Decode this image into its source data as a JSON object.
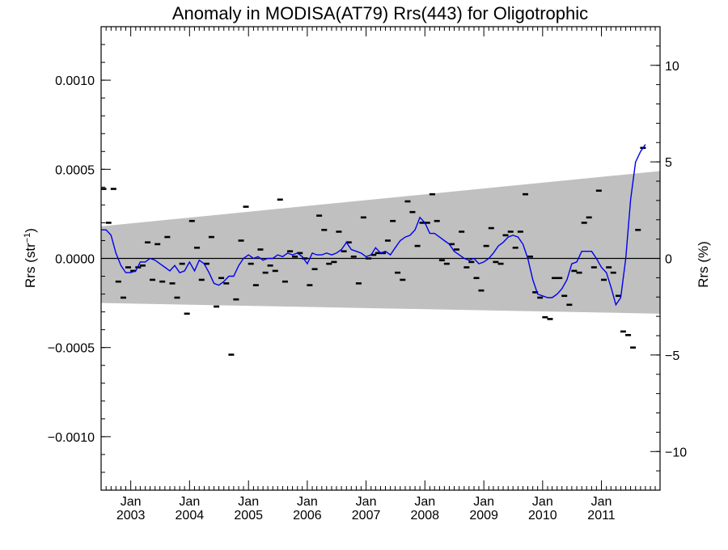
{
  "chart_data": {
    "type": "scatter",
    "title": "Anomaly in MODISA(AT79) Rrs(443) for Oligotrophic",
    "ylabel_left": {
      "main": "Rrs (str",
      "sup": "−1",
      "tail": ")"
    },
    "ylabel_right": "Rrs (%)",
    "x_range": [
      "2002-07-01",
      "2011-12-31"
    ],
    "ylim_left": [
      -0.0013,
      0.0013
    ],
    "ylim_right": [
      -12,
      12
    ],
    "grid": false,
    "x_tick_labels": [
      {
        "date": "2003-01-01",
        "month": "Jan",
        "year": "2003"
      },
      {
        "date": "2004-01-01",
        "month": "Jan",
        "year": "2004"
      },
      {
        "date": "2005-01-01",
        "month": "Jan",
        "year": "2005"
      },
      {
        "date": "2006-01-01",
        "month": "Jan",
        "year": "2006"
      },
      {
        "date": "2007-01-01",
        "month": "Jan",
        "year": "2007"
      },
      {
        "date": "2008-01-01",
        "month": "Jan",
        "year": "2008"
      },
      {
        "date": "2009-01-01",
        "month": "Jan",
        "year": "2009"
      },
      {
        "date": "2010-01-01",
        "month": "Jan",
        "year": "2010"
      },
      {
        "date": "2011-01-01",
        "month": "Jan",
        "year": "2011"
      }
    ],
    "y_ticks_left": [
      {
        "value": 0.001,
        "label": "0.0010"
      },
      {
        "value": 0.0005,
        "label": "0.0005"
      },
      {
        "value": 0.0,
        "label": "0.0000"
      },
      {
        "value": -0.0005,
        "label": "−0.0005"
      },
      {
        "value": -0.001,
        "label": "−0.0010"
      }
    ],
    "y_ticks_right": [
      {
        "value": 10,
        "label": "10"
      },
      {
        "value": 5,
        "label": "5"
      },
      {
        "value": 0,
        "label": "0"
      },
      {
        "value": -5,
        "label": "−5"
      },
      {
        "value": -10,
        "label": "−10"
      }
    ],
    "band": {
      "upper": [
        [
          "2002-07-01",
          0.00018
        ],
        [
          "2011-12-31",
          0.00049
        ]
      ],
      "lower": [
        [
          "2002-07-01",
          -0.00025
        ],
        [
          "2011-12-31",
          -0.00031
        ]
      ],
      "color": "#c0c0c0"
    },
    "zero_line": 0,
    "series": [
      {
        "kind": "points",
        "color": "#000000",
        "values": [
          [
            "2002-07-16",
            0.00039
          ],
          [
            "2002-08-16",
            0.0002
          ],
          [
            "2002-09-16",
            0.00039
          ],
          [
            "2002-10-16",
            -0.00013
          ],
          [
            "2002-11-16",
            -0.00022
          ],
          [
            "2002-12-16",
            -5e-05
          ],
          [
            "2003-01-16",
            -7e-05
          ],
          [
            "2003-02-16",
            -5e-05
          ],
          [
            "2003-03-16",
            -4e-05
          ],
          [
            "2003-04-16",
            9e-05
          ],
          [
            "2003-05-16",
            -0.00012
          ],
          [
            "2003-06-16",
            8e-05
          ],
          [
            "2003-07-16",
            -0.00013
          ],
          [
            "2003-08-16",
            0.00012
          ],
          [
            "2003-09-16",
            -0.00014
          ],
          [
            "2003-10-16",
            -0.00022
          ],
          [
            "2003-11-16",
            -3e-05
          ],
          [
            "2003-12-16",
            -0.00031
          ],
          [
            "2004-01-16",
            0.00021
          ],
          [
            "2004-02-16",
            6e-05
          ],
          [
            "2004-03-16",
            -0.00012
          ],
          [
            "2004-04-16",
            -3e-05
          ],
          [
            "2004-05-16",
            0.00012
          ],
          [
            "2004-06-16",
            -0.00027
          ],
          [
            "2004-07-16",
            -0.00011
          ],
          [
            "2004-08-16",
            -0.00014
          ],
          [
            "2004-09-16",
            -0.00054
          ],
          [
            "2004-10-16",
            -0.00023
          ],
          [
            "2004-11-16",
            0.0001
          ],
          [
            "2004-12-16",
            0.00029
          ],
          [
            "2005-01-16",
            -3e-05
          ],
          [
            "2005-02-16",
            -0.00015
          ],
          [
            "2005-03-16",
            5e-05
          ],
          [
            "2005-04-16",
            -8e-05
          ],
          [
            "2005-05-16",
            -4e-05
          ],
          [
            "2005-06-16",
            -7e-05
          ],
          [
            "2005-07-16",
            0.00033
          ],
          [
            "2005-08-16",
            -0.00013
          ],
          [
            "2005-09-16",
            4e-05
          ],
          [
            "2005-10-16",
            1e-05
          ],
          [
            "2005-11-16",
            3e-05
          ],
          [
            "2005-12-16",
            0.0
          ],
          [
            "2006-01-16",
            -0.00015
          ],
          [
            "2006-02-16",
            -6e-05
          ],
          [
            "2006-03-16",
            0.00024
          ],
          [
            "2006-04-16",
            0.00016
          ],
          [
            "2006-05-16",
            -3e-05
          ],
          [
            "2006-06-16",
            -2e-05
          ],
          [
            "2006-07-16",
            0.00015
          ],
          [
            "2006-08-16",
            4e-05
          ],
          [
            "2006-09-16",
            9e-05
          ],
          [
            "2006-10-16",
            1e-05
          ],
          [
            "2006-11-16",
            -0.00014
          ],
          [
            "2006-12-16",
            0.00023
          ],
          [
            "2007-01-16",
            0.0
          ],
          [
            "2007-02-16",
            2e-05
          ],
          [
            "2007-03-16",
            3e-05
          ],
          [
            "2007-04-16",
            3e-05
          ],
          [
            "2007-05-16",
            0.0001
          ],
          [
            "2007-06-16",
            0.00021
          ],
          [
            "2007-07-16",
            -8e-05
          ],
          [
            "2007-08-16",
            -0.00012
          ],
          [
            "2007-09-16",
            0.00032
          ],
          [
            "2007-10-16",
            0.00026
          ],
          [
            "2007-11-16",
            7e-05
          ],
          [
            "2007-12-16",
            0.0002
          ],
          [
            "2008-01-16",
            0.0002
          ],
          [
            "2008-02-16",
            0.00036
          ],
          [
            "2008-03-16",
            0.00021
          ],
          [
            "2008-04-16",
            -1e-05
          ],
          [
            "2008-05-16",
            -3e-05
          ],
          [
            "2008-06-16",
            8e-05
          ],
          [
            "2008-07-16",
            5e-05
          ],
          [
            "2008-08-16",
            0.00015
          ],
          [
            "2008-09-16",
            -5e-05
          ],
          [
            "2008-10-16",
            -2e-05
          ],
          [
            "2008-11-16",
            -0.00011
          ],
          [
            "2008-12-16",
            -0.00018
          ],
          [
            "2009-01-16",
            7e-05
          ],
          [
            "2009-02-16",
            0.00017
          ],
          [
            "2009-03-16",
            -2e-05
          ],
          [
            "2009-04-16",
            -3e-05
          ],
          [
            "2009-05-16",
            0.00013
          ],
          [
            "2009-06-16",
            0.00015
          ],
          [
            "2009-07-16",
            6e-05
          ],
          [
            "2009-08-16",
            0.00015
          ],
          [
            "2009-09-16",
            0.00036
          ],
          [
            "2009-10-16",
            1e-05
          ],
          [
            "2009-11-16",
            -0.00019
          ],
          [
            "2009-12-16",
            -0.00022
          ],
          [
            "2010-01-16",
            -0.00033
          ],
          [
            "2010-02-16",
            -0.00034
          ],
          [
            "2010-03-16",
            -0.00011
          ],
          [
            "2010-04-16",
            -0.00011
          ],
          [
            "2010-05-16",
            -0.00021
          ],
          [
            "2010-06-16",
            -0.00026
          ],
          [
            "2010-07-16",
            -7e-05
          ],
          [
            "2010-08-16",
            -8e-05
          ],
          [
            "2010-09-16",
            0.0002
          ],
          [
            "2010-10-16",
            0.00023
          ],
          [
            "2010-11-16",
            -5e-05
          ],
          [
            "2010-12-16",
            0.00038
          ],
          [
            "2011-01-16",
            -0.00012
          ],
          [
            "2011-02-16",
            -5e-05
          ],
          [
            "2011-03-16",
            -8e-05
          ],
          [
            "2011-04-16",
            -0.00021
          ],
          [
            "2011-05-16",
            -0.00041
          ],
          [
            "2011-06-16",
            -0.00043
          ],
          [
            "2011-07-16",
            -0.0005
          ],
          [
            "2011-08-16",
            0.00016
          ],
          [
            "2011-09-16",
            0.00062
          ]
        ]
      },
      {
        "kind": "line",
        "color": "#0000ee",
        "values": [
          [
            "2002-07-01",
            0.00016
          ],
          [
            "2002-08-01",
            0.00016
          ],
          [
            "2002-09-01",
            0.00013
          ],
          [
            "2002-10-01",
            3e-05
          ],
          [
            "2002-11-01",
            -4e-05
          ],
          [
            "2002-12-01",
            -8e-05
          ],
          [
            "2003-01-01",
            -8e-05
          ],
          [
            "2003-02-01",
            -7e-05
          ],
          [
            "2003-03-01",
            -2e-05
          ],
          [
            "2003-04-01",
            -2e-05
          ],
          [
            "2003-05-01",
            0.0
          ],
          [
            "2003-06-01",
            -1e-05
          ],
          [
            "2003-07-01",
            -3e-05
          ],
          [
            "2003-08-01",
            -5e-05
          ],
          [
            "2003-09-01",
            -7e-05
          ],
          [
            "2003-10-01",
            -4e-05
          ],
          [
            "2003-11-01",
            -8e-05
          ],
          [
            "2003-12-01",
            -7e-05
          ],
          [
            "2004-01-01",
            -2e-05
          ],
          [
            "2004-02-01",
            -7e-05
          ],
          [
            "2004-03-01",
            -1e-05
          ],
          [
            "2004-04-01",
            -3e-05
          ],
          [
            "2004-05-01",
            -8e-05
          ],
          [
            "2004-06-01",
            -0.00014
          ],
          [
            "2004-07-01",
            -0.00015
          ],
          [
            "2004-08-01",
            -0.00013
          ],
          [
            "2004-09-01",
            -0.0001
          ],
          [
            "2004-10-01",
            -0.0001
          ],
          [
            "2004-11-01",
            -4e-05
          ],
          [
            "2004-12-01",
            0.0
          ],
          [
            "2005-01-01",
            2e-05
          ],
          [
            "2005-02-01",
            0.0
          ],
          [
            "2005-03-01",
            1e-05
          ],
          [
            "2005-04-01",
            -1e-05
          ],
          [
            "2005-05-01",
            0.0
          ],
          [
            "2005-06-01",
            0.0
          ],
          [
            "2005-07-01",
            2e-05
          ],
          [
            "2005-08-01",
            1e-05
          ],
          [
            "2005-09-01",
            3e-05
          ],
          [
            "2005-10-01",
            2e-05
          ],
          [
            "2005-11-01",
            3e-05
          ],
          [
            "2005-12-01",
            1e-05
          ],
          [
            "2006-01-01",
            -3e-05
          ],
          [
            "2006-02-01",
            3e-05
          ],
          [
            "2006-03-01",
            2e-05
          ],
          [
            "2006-04-01",
            2e-05
          ],
          [
            "2006-05-01",
            3e-05
          ],
          [
            "2006-06-01",
            2e-05
          ],
          [
            "2006-07-01",
            3e-05
          ],
          [
            "2006-08-01",
            5e-05
          ],
          [
            "2006-09-01",
            9e-05
          ],
          [
            "2006-10-01",
            5e-05
          ],
          [
            "2006-11-01",
            4e-05
          ],
          [
            "2006-12-01",
            3e-05
          ],
          [
            "2007-01-01",
            1e-05
          ],
          [
            "2007-02-01",
            2e-05
          ],
          [
            "2007-03-01",
            6e-05
          ],
          [
            "2007-04-01",
            3e-05
          ],
          [
            "2007-05-01",
            4e-05
          ],
          [
            "2007-06-01",
            2e-05
          ],
          [
            "2007-07-01",
            6e-05
          ],
          [
            "2007-08-01",
            0.0001
          ],
          [
            "2007-09-01",
            0.00012
          ],
          [
            "2007-10-01",
            0.00013
          ],
          [
            "2007-11-01",
            0.00016
          ],
          [
            "2007-12-01",
            0.00023
          ],
          [
            "2008-01-01",
            0.0002
          ],
          [
            "2008-02-01",
            0.00014
          ],
          [
            "2008-03-01",
            0.00014
          ],
          [
            "2008-04-01",
            0.00012
          ],
          [
            "2008-05-01",
            0.0001
          ],
          [
            "2008-06-01",
            8e-05
          ],
          [
            "2008-07-01",
            4e-05
          ],
          [
            "2008-08-01",
            2e-05
          ],
          [
            "2008-09-01",
            0.0
          ],
          [
            "2008-10-01",
            -1e-05
          ],
          [
            "2008-11-01",
            0.0
          ],
          [
            "2008-12-01",
            -3e-05
          ],
          [
            "2009-01-01",
            -2e-05
          ],
          [
            "2009-02-01",
            0.0
          ],
          [
            "2009-03-01",
            3e-05
          ],
          [
            "2009-04-01",
            7e-05
          ],
          [
            "2009-05-01",
            9e-05
          ],
          [
            "2009-06-01",
            0.00012
          ],
          [
            "2009-07-01",
            0.00013
          ],
          [
            "2009-08-01",
            0.00012
          ],
          [
            "2009-09-01",
            8e-05
          ],
          [
            "2009-10-01",
            0.0
          ],
          [
            "2009-11-01",
            -0.00012
          ],
          [
            "2009-12-01",
            -0.0002
          ],
          [
            "2010-01-01",
            -0.00021
          ],
          [
            "2010-02-01",
            -0.00022
          ],
          [
            "2010-03-01",
            -0.00022
          ],
          [
            "2010-04-01",
            -0.0002
          ],
          [
            "2010-05-01",
            -0.00017
          ],
          [
            "2010-06-01",
            -0.00012
          ],
          [
            "2010-07-01",
            -3e-05
          ],
          [
            "2010-08-01",
            -2e-05
          ],
          [
            "2010-09-01",
            4e-05
          ],
          [
            "2010-10-01",
            4e-05
          ],
          [
            "2010-11-01",
            4e-05
          ],
          [
            "2010-12-01",
            0.0
          ],
          [
            "2011-01-01",
            -5e-05
          ],
          [
            "2011-02-01",
            -8e-05
          ],
          [
            "2011-03-01",
            -0.00016
          ],
          [
            "2011-04-01",
            -0.00026
          ],
          [
            "2011-05-01",
            -0.00022
          ],
          [
            "2011-06-01",
            0.0
          ],
          [
            "2011-07-01",
            0.00033
          ],
          [
            "2011-08-01",
            0.00054
          ],
          [
            "2011-09-01",
            0.0006
          ],
          [
            "2011-10-01",
            0.00064
          ]
        ]
      }
    ]
  }
}
